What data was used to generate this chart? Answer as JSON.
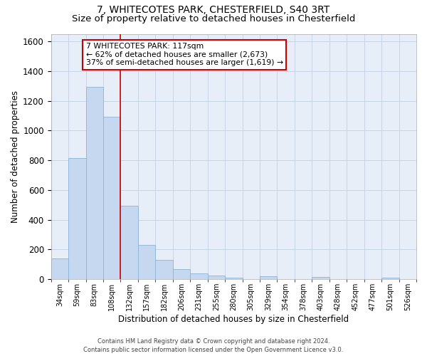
{
  "title_line1": "7, WHITECOTES PARK, CHESTERFIELD, S40 3RT",
  "title_line2": "Size of property relative to detached houses in Chesterfield",
  "xlabel": "Distribution of detached houses by size in Chesterfield",
  "ylabel": "Number of detached properties",
  "footer_line1": "Contains HM Land Registry data © Crown copyright and database right 2024.",
  "footer_line2": "Contains public sector information licensed under the Open Government Licence v3.0.",
  "annotation_line1": "7 WHITECOTES PARK: 117sqm",
  "annotation_line2": "← 62% of detached houses are smaller (2,673)",
  "annotation_line3": "37% of semi-detached houses are larger (1,619) →",
  "bar_color": "#c5d8f0",
  "bar_edge_color": "#8ab4d8",
  "bar_values": [
    140,
    815,
    1295,
    1090,
    495,
    232,
    130,
    67,
    38,
    27,
    13,
    0,
    18,
    0,
    0,
    14,
    0,
    0,
    0,
    12,
    0
  ],
  "categories": [
    "34sqm",
    "59sqm",
    "83sqm",
    "108sqm",
    "132sqm",
    "157sqm",
    "182sqm",
    "206sqm",
    "231sqm",
    "255sqm",
    "280sqm",
    "305sqm",
    "329sqm",
    "354sqm",
    "378sqm",
    "403sqm",
    "428sqm",
    "452sqm",
    "477sqm",
    "501sqm",
    "526sqm"
  ],
  "ylim": [
    0,
    1650
  ],
  "yticks": [
    0,
    200,
    400,
    600,
    800,
    1000,
    1200,
    1400,
    1600
  ],
  "vline_color": "#cc0000",
  "grid_color": "#c8d4e8",
  "bg_color": "#e8eef8",
  "annotation_box_color": "#ffffff",
  "annotation_box_edge": "#cc0000",
  "title_fontsize": 10,
  "subtitle_fontsize": 9.5
}
